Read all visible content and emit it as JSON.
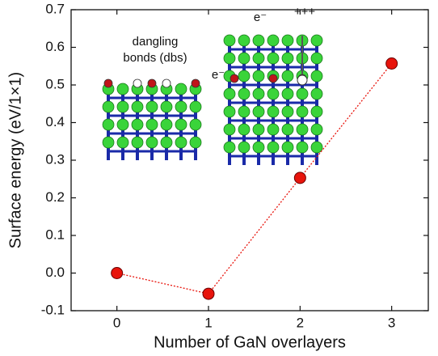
{
  "chart_data": {
    "type": "line",
    "x_label": "Number of GaN overlayers",
    "y_label": "Surface energy (eV/1×1)",
    "x": [
      0,
      1,
      2,
      3
    ],
    "series": [
      {
        "values": [
          0.0,
          -0.055,
          0.253,
          0.557
        ],
        "color": "#e8140c"
      }
    ],
    "xlim": [
      -0.5,
      3.4
    ],
    "ylim": [
      -0.1,
      0.7
    ],
    "xticks": [
      0,
      1,
      2,
      3
    ],
    "yticks": [
      {
        "value": -0.1,
        "label": "-0.1"
      },
      {
        "value": 0,
        "label": "0.0"
      },
      0.1,
      0.2,
      0.3,
      0.4,
      0.5,
      0.6,
      0.7
    ],
    "inset_labels": [
      "dangling",
      "bonds (dbs)",
      "e⁻",
      "e⁻",
      "+++"
    ]
  }
}
